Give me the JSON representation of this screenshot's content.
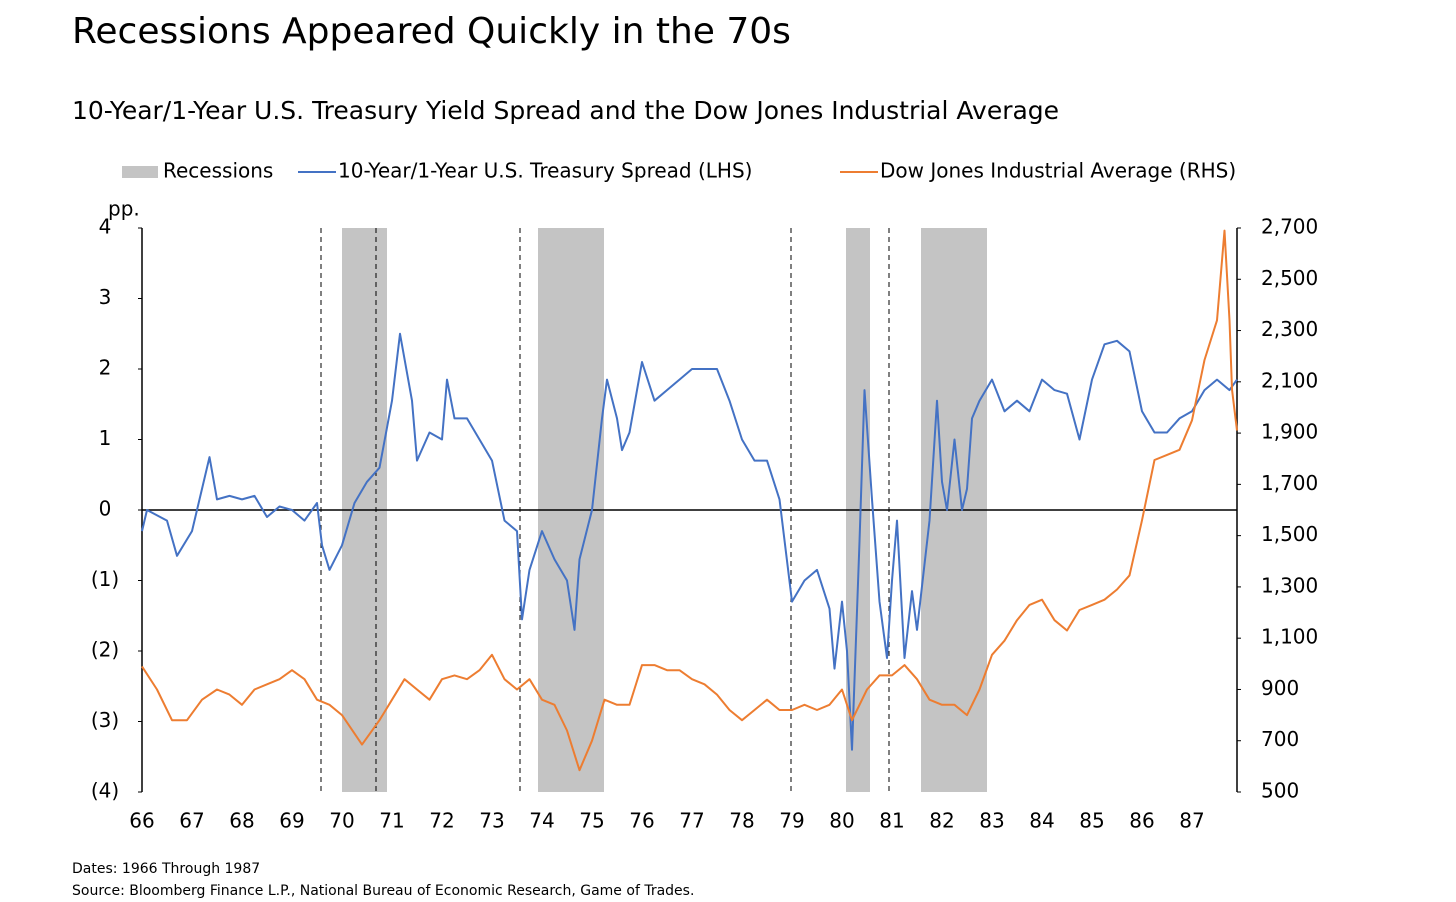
{
  "chart_data": {
    "type": "line",
    "title": "Recessions Appeared Quickly in the 70s",
    "subtitle": "10-Year/1-Year U.S. Treasury Yield Spread and the Dow Jones Industrial Average",
    "ylabel": "pp.",
    "footnotes": [
      "Dates: 1966 Through 1987",
      "Source: Bloomberg Finance L.P., National Bureau of Economic Research, Game of Trades."
    ],
    "recession_name": "Recessions",
    "recession_color": "#c4c4c4",
    "recessions": [
      [
        70.0,
        70.9
      ],
      [
        73.92,
        75.24
      ],
      [
        80.08,
        80.56
      ],
      [
        81.58,
        82.9
      ]
    ],
    "markers": [
      69.58,
      70.68,
      73.56,
      78.98,
      80.94
    ],
    "xlim": [
      66,
      87.9
    ],
    "xticks": [
      66,
      67,
      68,
      69,
      70,
      71,
      72,
      73,
      74,
      75,
      76,
      77,
      78,
      79,
      80,
      81,
      82,
      83,
      84,
      85,
      86,
      87
    ],
    "ylim": [
      -4,
      4
    ],
    "yticks": [
      {
        "value": -4,
        "label": "(4)"
      },
      {
        "value": -3,
        "label": "(3)"
      },
      {
        "value": -2,
        "label": "(2)"
      },
      {
        "value": -1,
        "label": "(1)"
      },
      0,
      1,
      2,
      3,
      4
    ],
    "y2lim": [
      500,
      2700
    ],
    "y2ticks": [
      {
        "value": 500,
        "label": "500"
      },
      {
        "value": 700,
        "label": "700"
      },
      {
        "value": 900,
        "label": "900"
      },
      {
        "value": 1100,
        "label": "1,100"
      },
      {
        "value": 1300,
        "label": "1,300"
      },
      {
        "value": 1500,
        "label": "1,500"
      },
      {
        "value": 1700,
        "label": "1,700"
      },
      {
        "value": 1900,
        "label": "1,900"
      },
      {
        "value": 2100,
        "label": "2,100"
      },
      {
        "value": 2300,
        "label": "2,300"
      },
      {
        "value": 2500,
        "label": "2,500"
      },
      {
        "value": 2700,
        "label": "2,700"
      }
    ],
    "series": [
      {
        "name": "10-Year/1-Year U.S. Treasury Spread (LHS)",
        "color": "#4472c4",
        "x": [
          66,
          66.1,
          66.5,
          66.7,
          67,
          67.2,
          67.35,
          67.5,
          67.75,
          68,
          68.25,
          68.5,
          68.75,
          69,
          69.25,
          69.5,
          69.6,
          69.75,
          70,
          70.25,
          70.5,
          70.75,
          71,
          71.16,
          71.4,
          71.5,
          71.75,
          72,
          72.1,
          72.25,
          72.5,
          72.75,
          73,
          73.25,
          73.5,
          73.6,
          73.75,
          74,
          74.25,
          74.5,
          74.65,
          74.75,
          75,
          75.2,
          75.3,
          75.5,
          75.6,
          75.75,
          76,
          76.25,
          76.5,
          76.75,
          77,
          77.25,
          77.5,
          77.75,
          78,
          78.25,
          78.5,
          78.75,
          79,
          79.25,
          79.5,
          79.75,
          79.85,
          80,
          80.1,
          80.2,
          80.35,
          80.45,
          80.6,
          80.75,
          80.9,
          81,
          81.1,
          81.25,
          81.4,
          81.5,
          81.75,
          81.9,
          82,
          82.1,
          82.25,
          82.4,
          82.5,
          82.6,
          82.75,
          83,
          83.25,
          83.5,
          83.75,
          84,
          84.25,
          84.5,
          84.75,
          85,
          85.25,
          85.5,
          85.75,
          86,
          86.25,
          86.5,
          86.75,
          87,
          87.25,
          87.5,
          87.75,
          87.9
        ],
        "values": [
          -0.3,
          0,
          -0.15,
          -0.65,
          -0.3,
          0.3,
          0.75,
          0.15,
          0.2,
          0.15,
          0.2,
          -0.1,
          0.05,
          0,
          -0.15,
          0.1,
          -0.5,
          -0.85,
          -0.5,
          0.1,
          0.4,
          0.6,
          1.55,
          2.5,
          1.55,
          0.7,
          1.1,
          1.0,
          1.85,
          1.3,
          1.3,
          1.0,
          0.7,
          -0.15,
          -0.3,
          -1.55,
          -0.85,
          -0.3,
          -0.7,
          -1.0,
          -1.7,
          -0.7,
          0,
          1.3,
          1.85,
          1.3,
          0.85,
          1.1,
          2.1,
          1.55,
          1.7,
          1.85,
          2.0,
          2.0,
          2.0,
          1.55,
          1.0,
          0.7,
          0.7,
          0.15,
          -1.3,
          -1.0,
          -0.85,
          -1.4,
          -2.25,
          -1.3,
          -2.0,
          -3.4,
          -0.45,
          1.7,
          0.15,
          -1.3,
          -2.1,
          -1.0,
          -0.15,
          -2.1,
          -1.15,
          -1.7,
          -0.15,
          1.55,
          0.4,
          0,
          1.0,
          0,
          0.3,
          1.3,
          1.55,
          1.85,
          1.4,
          1.55,
          1.4,
          1.85,
          1.7,
          1.65,
          1.0,
          1.85,
          2.35,
          2.4,
          2.25,
          1.4,
          1.1,
          1.1,
          1.3,
          1.4,
          1.7,
          1.85,
          1.7,
          1.85
        ]
      },
      {
        "name": "Dow Jones Industrial Average (RHS)",
        "color": "#ed7d31",
        "axis": "y2",
        "x": [
          66,
          66.3,
          66.6,
          66.9,
          67.2,
          67.5,
          67.75,
          68,
          68.25,
          68.5,
          68.75,
          69,
          69.25,
          69.5,
          69.75,
          70,
          70.4,
          70.75,
          71,
          71.25,
          71.5,
          71.75,
          72,
          72.25,
          72.5,
          72.75,
          73,
          73.25,
          73.5,
          73.75,
          74,
          74.25,
          74.5,
          74.75,
          75,
          75.25,
          75.5,
          75.75,
          76,
          76.25,
          76.5,
          76.75,
          77,
          77.25,
          77.5,
          77.75,
          78,
          78.25,
          78.5,
          78.75,
          79,
          79.25,
          79.5,
          79.75,
          80,
          80.2,
          80.5,
          80.75,
          81,
          81.25,
          81.5,
          81.75,
          82,
          82.25,
          82.5,
          82.75,
          83,
          83.25,
          83.5,
          83.75,
          84,
          84.25,
          84.5,
          84.75,
          85,
          85.25,
          85.5,
          85.75,
          86,
          86.25,
          86.5,
          86.75,
          87,
          87.25,
          87.5,
          87.65,
          87.75,
          87.8,
          87.9
        ],
        "values": [
          990,
          900,
          780,
          780,
          860,
          900,
          880,
          840,
          900,
          920,
          940,
          975,
          940,
          860,
          840,
          800,
          685,
          780,
          860,
          940,
          900,
          860,
          940,
          955,
          940,
          975,
          1035,
          940,
          900,
          940,
          860,
          840,
          740,
          585,
          700,
          860,
          840,
          840,
          995,
          995,
          975,
          975,
          940,
          920,
          880,
          820,
          780,
          820,
          860,
          820,
          820,
          840,
          820,
          840,
          900,
          780,
          900,
          955,
          955,
          995,
          940,
          860,
          840,
          840,
          800,
          900,
          1035,
          1090,
          1170,
          1230,
          1250,
          1170,
          1130,
          1210,
          1230,
          1250,
          1290,
          1345,
          1560,
          1795,
          1815,
          1835,
          1950,
          2185,
          2340,
          2690,
          2340,
          2070,
          1910
        ]
      }
    ]
  }
}
